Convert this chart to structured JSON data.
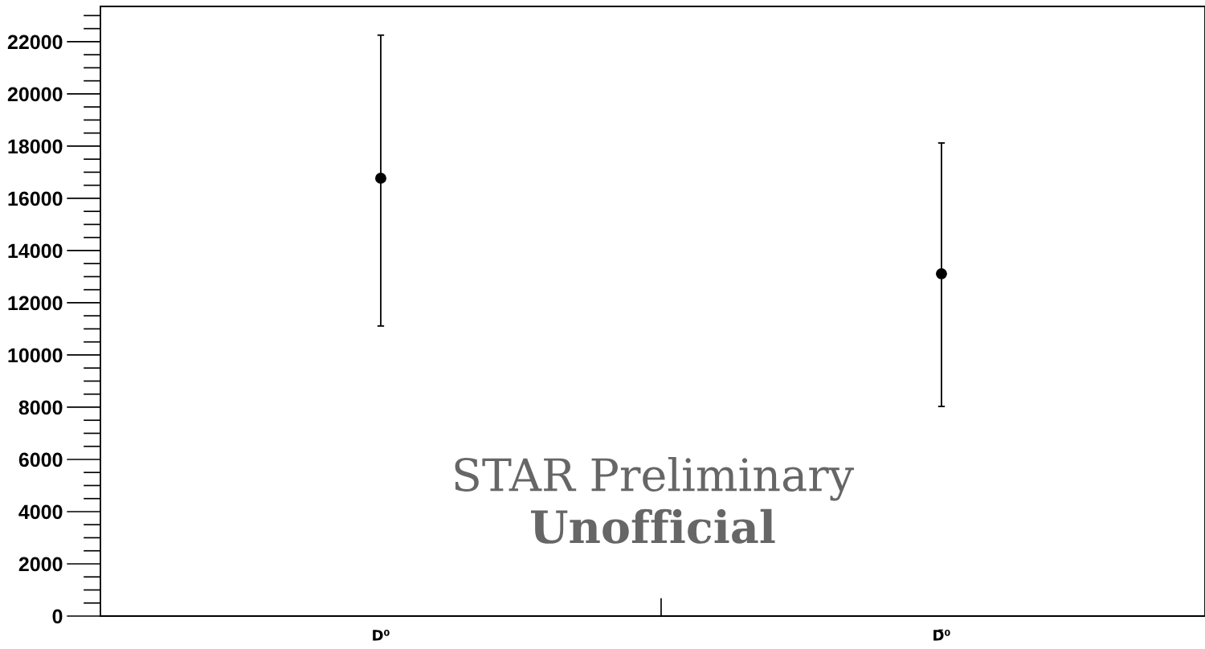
{
  "chart_data": {
    "type": "scatter",
    "categories": [
      "D⁰",
      "D̄⁰"
    ],
    "series": [
      {
        "color": "#000000",
        "values": [
          16770,
          13110
        ],
        "errors": [
          [
            11110,
            22250
          ],
          [
            8030,
            18120
          ]
        ]
      }
    ],
    "ylim": [
      0,
      23350
    ],
    "yticks": [
      0,
      2000,
      4000,
      6000,
      8000,
      10000,
      12000,
      14000,
      16000,
      18000,
      20000,
      22000
    ],
    "marker": "circle",
    "grid": false,
    "legend": false,
    "annotations": [
      "STAR Preliminary",
      "Unofficial"
    ]
  }
}
